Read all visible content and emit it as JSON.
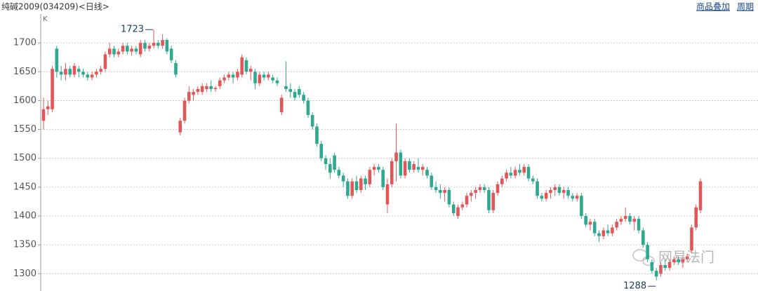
{
  "chart_data": {
    "type": "candlestick",
    "title": "纯碱2009(034209)<日线>",
    "axis_label": "K",
    "links": [
      "商品叠加",
      "周期"
    ],
    "watermark": "网易法门",
    "max_label": 1723,
    "min_label": 1288,
    "up_color": "#e0575a",
    "down_color": "#2ea88f",
    "ylim": [
      1270,
      1750
    ],
    "yticks": [
      1300,
      1350,
      1400,
      1450,
      1500,
      1550,
      1600,
      1650,
      1700
    ],
    "grid": true,
    "ohlc": [
      [
        1565,
        1605,
        1550,
        1585
      ],
      [
        1585,
        1600,
        1575,
        1590
      ],
      [
        1585,
        1660,
        1580,
        1655
      ],
      [
        1690,
        1695,
        1640,
        1650
      ],
      [
        1650,
        1660,
        1635,
        1645
      ],
      [
        1645,
        1665,
        1635,
        1655
      ],
      [
        1655,
        1660,
        1640,
        1645
      ],
      [
        1645,
        1665,
        1640,
        1660
      ],
      [
        1655,
        1660,
        1640,
        1650
      ],
      [
        1650,
        1655,
        1640,
        1645
      ],
      [
        1645,
        1650,
        1635,
        1640
      ],
      [
        1640,
        1650,
        1635,
        1645
      ],
      [
        1645,
        1655,
        1640,
        1650
      ],
      [
        1650,
        1660,
        1645,
        1655
      ],
      [
        1655,
        1685,
        1650,
        1680
      ],
      [
        1680,
        1700,
        1675,
        1690
      ],
      [
        1690,
        1695,
        1675,
        1680
      ],
      [
        1680,
        1690,
        1675,
        1685
      ],
      [
        1685,
        1700,
        1680,
        1695
      ],
      [
        1695,
        1700,
        1680,
        1685
      ],
      [
        1685,
        1695,
        1678,
        1690
      ],
      [
        1690,
        1695,
        1680,
        1685
      ],
      [
        1680,
        1705,
        1675,
        1700
      ],
      [
        1700,
        1705,
        1685,
        1690
      ],
      [
        1690,
        1700,
        1685,
        1695
      ],
      [
        1695,
        1723,
        1690,
        1700
      ],
      [
        1700,
        1705,
        1690,
        1695
      ],
      [
        1695,
        1715,
        1690,
        1705
      ],
      [
        1705,
        1708,
        1680,
        1685
      ],
      [
        1690,
        1695,
        1665,
        1670
      ],
      [
        1665,
        1670,
        1640,
        1645
      ],
      [
        1545,
        1570,
        1540,
        1565
      ],
      [
        1565,
        1605,
        1560,
        1600
      ],
      [
        1600,
        1625,
        1595,
        1615
      ],
      [
        1610,
        1620,
        1600,
        1615
      ],
      [
        1615,
        1625,
        1610,
        1620
      ],
      [
        1615,
        1630,
        1610,
        1625
      ],
      [
        1620,
        1630,
        1615,
        1625
      ],
      [
        1625,
        1635,
        1615,
        1620
      ],
      [
        1620,
        1625,
        1615,
        1622
      ],
      [
        1625,
        1640,
        1620,
        1635
      ],
      [
        1635,
        1645,
        1630,
        1640
      ],
      [
        1640,
        1650,
        1635,
        1645
      ],
      [
        1645,
        1650,
        1630,
        1640
      ],
      [
        1640,
        1655,
        1635,
        1650
      ],
      [
        1645,
        1680,
        1640,
        1675
      ],
      [
        1670,
        1675,
        1645,
        1650
      ],
      [
        1650,
        1660,
        1635,
        1655
      ],
      [
        1650,
        1655,
        1620,
        1630
      ],
      [
        1630,
        1650,
        1625,
        1645
      ],
      [
        1645,
        1650,
        1635,
        1640
      ],
      [
        1640,
        1650,
        1635,
        1645
      ],
      [
        1640,
        1645,
        1630,
        1635
      ],
      [
        1635,
        1640,
        1625,
        1630
      ],
      [
        1580,
        1610,
        1575,
        1605
      ],
      [
        1625,
        1668,
        1615,
        1620
      ],
      [
        1620,
        1630,
        1605,
        1615
      ],
      [
        1615,
        1620,
        1600,
        1605
      ],
      [
        1620,
        1625,
        1605,
        1610
      ],
      [
        1610,
        1615,
        1595,
        1600
      ],
      [
        1600,
        1605,
        1570,
        1575
      ],
      [
        1575,
        1580,
        1550,
        1555
      ],
      [
        1555,
        1560,
        1520,
        1525
      ],
      [
        1525,
        1530,
        1495,
        1500
      ],
      [
        1500,
        1505,
        1480,
        1490
      ],
      [
        1490,
        1500,
        1465,
        1475
      ],
      [
        1505,
        1510,
        1475,
        1480
      ],
      [
        1480,
        1485,
        1465,
        1470
      ],
      [
        1470,
        1475,
        1450,
        1460
      ],
      [
        1460,
        1465,
        1430,
        1435
      ],
      [
        1435,
        1465,
        1430,
        1460
      ],
      [
        1460,
        1470,
        1440,
        1445
      ],
      [
        1445,
        1470,
        1440,
        1465
      ],
      [
        1465,
        1470,
        1445,
        1455
      ],
      [
        1455,
        1485,
        1450,
        1480
      ],
      [
        1480,
        1490,
        1470,
        1485
      ],
      [
        1485,
        1490,
        1475,
        1480
      ],
      [
        1480,
        1485,
        1445,
        1450
      ],
      [
        1420,
        1465,
        1405,
        1455
      ],
      [
        1455,
        1500,
        1450,
        1495
      ],
      [
        1495,
        1560,
        1460,
        1510
      ],
      [
        1510,
        1515,
        1465,
        1470
      ],
      [
        1470,
        1500,
        1465,
        1495
      ],
      [
        1495,
        1500,
        1475,
        1480
      ],
      [
        1480,
        1495,
        1475,
        1490
      ],
      [
        1485,
        1500,
        1475,
        1480
      ],
      [
        1480,
        1490,
        1470,
        1485
      ],
      [
        1480,
        1485,
        1465,
        1470
      ],
      [
        1470,
        1475,
        1445,
        1450
      ],
      [
        1450,
        1460,
        1440,
        1445
      ],
      [
        1445,
        1455,
        1430,
        1440
      ],
      [
        1440,
        1450,
        1425,
        1445
      ],
      [
        1445,
        1450,
        1415,
        1420
      ],
      [
        1420,
        1425,
        1400,
        1405
      ],
      [
        1400,
        1420,
        1395,
        1415
      ],
      [
        1415,
        1425,
        1410,
        1420
      ],
      [
        1420,
        1440,
        1415,
        1435
      ],
      [
        1435,
        1445,
        1425,
        1440
      ],
      [
        1440,
        1450,
        1430,
        1445
      ],
      [
        1445,
        1455,
        1440,
        1450
      ],
      [
        1450,
        1455,
        1440,
        1445
      ],
      [
        1445,
        1450,
        1405,
        1410
      ],
      [
        1410,
        1445,
        1405,
        1440
      ],
      [
        1440,
        1460,
        1435,
        1455
      ],
      [
        1455,
        1470,
        1450,
        1465
      ],
      [
        1465,
        1480,
        1460,
        1475
      ],
      [
        1475,
        1485,
        1465,
        1470
      ],
      [
        1470,
        1485,
        1465,
        1480
      ],
      [
        1480,
        1490,
        1470,
        1475
      ],
      [
        1475,
        1490,
        1470,
        1485
      ],
      [
        1485,
        1490,
        1460,
        1465
      ],
      [
        1465,
        1470,
        1455,
        1460
      ],
      [
        1460,
        1465,
        1430,
        1435
      ],
      [
        1435,
        1440,
        1425,
        1430
      ],
      [
        1430,
        1445,
        1425,
        1440
      ],
      [
        1440,
        1450,
        1430,
        1445
      ],
      [
        1445,
        1455,
        1435,
        1450
      ],
      [
        1450,
        1455,
        1435,
        1440
      ],
      [
        1440,
        1450,
        1430,
        1445
      ],
      [
        1445,
        1450,
        1430,
        1435
      ],
      [
        1435,
        1440,
        1425,
        1430
      ],
      [
        1430,
        1440,
        1425,
        1435
      ],
      [
        1435,
        1440,
        1395,
        1400
      ],
      [
        1400,
        1405,
        1380,
        1385
      ],
      [
        1385,
        1395,
        1375,
        1390
      ],
      [
        1390,
        1395,
        1365,
        1370
      ],
      [
        1370,
        1375,
        1355,
        1365
      ],
      [
        1365,
        1380,
        1360,
        1375
      ],
      [
        1375,
        1385,
        1365,
        1370
      ],
      [
        1370,
        1385,
        1365,
        1380
      ],
      [
        1380,
        1395,
        1375,
        1390
      ],
      [
        1390,
        1400,
        1385,
        1395
      ],
      [
        1395,
        1415,
        1390,
        1400
      ],
      [
        1400,
        1405,
        1385,
        1390
      ],
      [
        1390,
        1400,
        1375,
        1395
      ],
      [
        1395,
        1400,
        1370,
        1375
      ],
      [
        1375,
        1380,
        1345,
        1350
      ],
      [
        1350,
        1355,
        1320,
        1325
      ],
      [
        1320,
        1325,
        1300,
        1305
      ],
      [
        1305,
        1310,
        1288,
        1295
      ],
      [
        1300,
        1320,
        1295,
        1315
      ],
      [
        1315,
        1325,
        1305,
        1310
      ],
      [
        1310,
        1325,
        1305,
        1320
      ],
      [
        1320,
        1330,
        1315,
        1325
      ],
      [
        1325,
        1330,
        1315,
        1320
      ],
      [
        1320,
        1330,
        1310,
        1325
      ],
      [
        1325,
        1335,
        1320,
        1330
      ],
      [
        1340,
        1385,
        1335,
        1380
      ],
      [
        1380,
        1420,
        1375,
        1415
      ],
      [
        1410,
        1465,
        1405,
        1460
      ]
    ]
  }
}
